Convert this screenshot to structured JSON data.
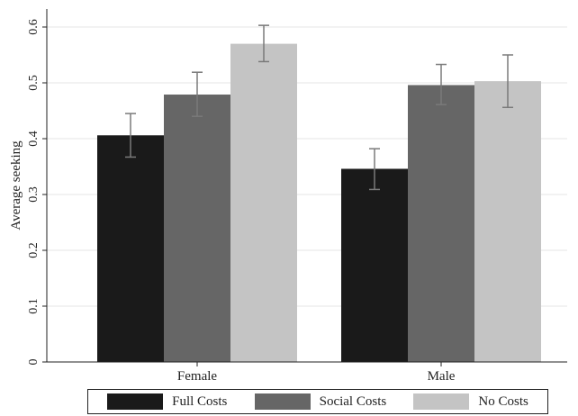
{
  "chart_data": {
    "type": "bar",
    "title": "",
    "xlabel": "",
    "ylabel": "Average seeking",
    "categories": [
      "Female",
      "Male"
    ],
    "ylim": [
      0,
      0.6
    ],
    "yticks": [
      "0",
      "0.1",
      "0.2",
      "0.3",
      "0.4",
      "0.5",
      "0.6"
    ],
    "grid": true,
    "legend_position": "bottom",
    "series": [
      {
        "name": "Full Costs",
        "color": "#1a1a1a",
        "values": [
          0.406,
          0.346
        ],
        "err_low": [
          0.367,
          0.309
        ],
        "err_high": [
          0.445,
          0.382
        ]
      },
      {
        "name": "Social Costs",
        "color": "#666666",
        "values": [
          0.479,
          0.496
        ],
        "err_low": [
          0.44,
          0.461
        ],
        "err_high": [
          0.519,
          0.533
        ]
      },
      {
        "name": "No Costs",
        "color": "#c4c4c4",
        "values": [
          0.57,
          0.503
        ],
        "err_low": [
          0.538,
          0.456
        ],
        "err_high": [
          0.603,
          0.55
        ]
      }
    ]
  }
}
